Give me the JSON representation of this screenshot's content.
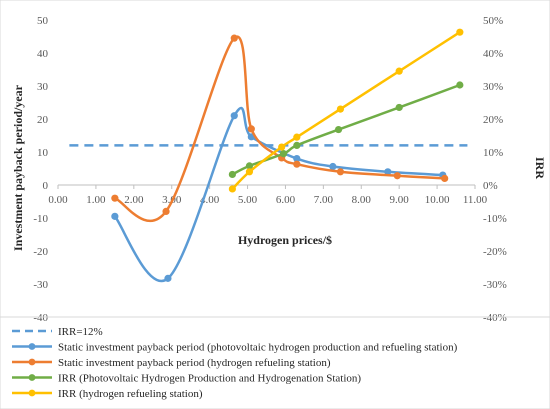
{
  "chart_data": {
    "type": "line",
    "xlabel": "Hydrogen prices/$",
    "ylabel": "Investment payback period/year",
    "y2label": "IRR",
    "xlim": [
      0,
      11
    ],
    "ylim": [
      -40,
      50
    ],
    "y2lim": [
      -40,
      50
    ],
    "x_ticks": [
      "0.00",
      "1.00",
      "2.00",
      "3.00",
      "4.00",
      "5.00",
      "6.00",
      "7.00",
      "8.00",
      "9.00",
      "10.00",
      "11.00"
    ],
    "y_ticks": [
      "50",
      "40",
      "30",
      "20",
      "10",
      "0",
      "-10",
      "-20",
      "-30",
      "-40"
    ],
    "y2_ticks": [
      "50%",
      "40%",
      "30%",
      "20%",
      "10%",
      "0%",
      "-10%",
      "-20%",
      "-30%",
      "-40%"
    ],
    "grid": false,
    "legend_position": "bottom",
    "series": [
      {
        "name": "IRR=12%",
        "color": "#5b9bd5",
        "dashed": true,
        "points": [
          [
            0.3,
            12
          ],
          [
            10.8,
            12
          ]
        ]
      },
      {
        "name": "Static investment payback period (photovoltaic hydrogen production and refueling station)",
        "color": "#5b9bd5",
        "axis": "left",
        "points": [
          [
            1.5,
            -9.5
          ],
          [
            2.9,
            -28.3
          ],
          [
            4.65,
            21
          ],
          [
            5.1,
            14.6
          ],
          [
            6.3,
            8
          ],
          [
            7.25,
            5.6
          ],
          [
            8.7,
            4
          ],
          [
            10.15,
            3
          ]
        ]
      },
      {
        "name": "Static investment payback period (hydrogen refueling station)",
        "color": "#ed7d31",
        "axis": "left",
        "points": [
          [
            1.5,
            -4
          ],
          [
            2.85,
            -8
          ],
          [
            4.65,
            44.5
          ],
          [
            5.1,
            17
          ],
          [
            5.9,
            8.2
          ],
          [
            6.3,
            6.3
          ],
          [
            7.45,
            4
          ],
          [
            8.95,
            2.8
          ],
          [
            10.2,
            2
          ]
        ]
      },
      {
        "name": "IRR (Photovoltaic Hydrogen Production and Hydrogenation Station)",
        "color": "#70ad47",
        "axis": "right",
        "points": [
          [
            4.6,
            3.2
          ],
          [
            5.05,
            5.8
          ],
          [
            5.95,
            9.5
          ],
          [
            6.3,
            12
          ],
          [
            7.4,
            16.8
          ],
          [
            9.0,
            23.5
          ],
          [
            10.6,
            30.3
          ]
        ]
      },
      {
        "name": "IRR (hydrogen refueling station)",
        "color": "#ffc000",
        "axis": "right",
        "points": [
          [
            4.6,
            -1.2
          ],
          [
            5.05,
            4
          ],
          [
            5.9,
            11.5
          ],
          [
            6.3,
            14.5
          ],
          [
            7.45,
            23
          ],
          [
            9.0,
            34.5
          ],
          [
            10.6,
            46.3
          ]
        ]
      }
    ]
  }
}
